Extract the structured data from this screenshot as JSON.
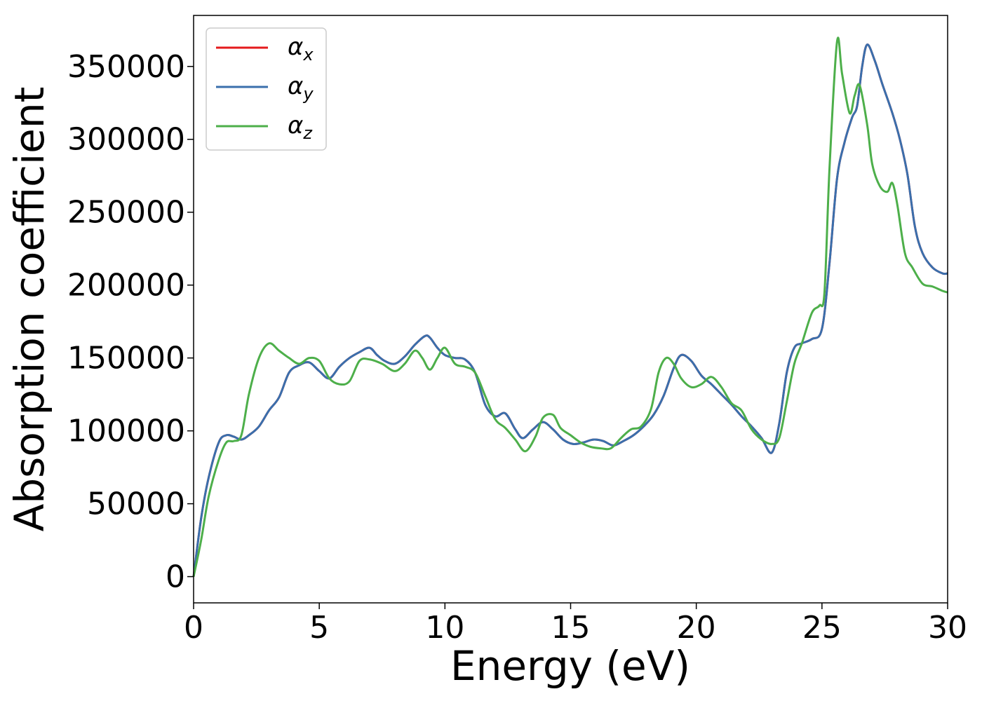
{
  "chart_data": {
    "type": "line",
    "xlabel": "Energy (eV)",
    "ylabel": "Absorption coefficient",
    "xlim": [
      0,
      30
    ],
    "ylim": [
      -18000,
      385000
    ],
    "xticks": [
      0,
      5,
      10,
      15,
      20,
      25,
      30
    ],
    "yticks": [
      0,
      50000,
      100000,
      150000,
      200000,
      250000,
      300000,
      350000
    ],
    "grid": false,
    "legend_position": "top-left",
    "series": [
      {
        "name": "α_x",
        "label_main": "α",
        "label_sub": "x",
        "color": "#e41a1c",
        "x": [
          0,
          0.3,
          0.6,
          1,
          1.3,
          1.6,
          1.9,
          2.2,
          2.6,
          3,
          3.4,
          3.8,
          4.2,
          4.6,
          5,
          5.4,
          5.8,
          6.2,
          6.6,
          7,
          7.3,
          7.6,
          8,
          8.4,
          8.8,
          9.2,
          9.4,
          9.7,
          10,
          10.4,
          10.8,
          11.2,
          11.6,
          12,
          12.4,
          12.8,
          13.1,
          13.5,
          13.9,
          14.3,
          14.7,
          15.1,
          15.5,
          15.9,
          16.3,
          16.7,
          17.1,
          17.5,
          17.9,
          18.3,
          18.7,
          19.1,
          19.4,
          19.8,
          20.2,
          20.6,
          21,
          21.4,
          21.8,
          22.2,
          22.6,
          23,
          23.3,
          23.6,
          23.9,
          24.2,
          24.6,
          25,
          25.3,
          25.6,
          25.9,
          26.2,
          26.4,
          26.6,
          26.8,
          27.1,
          27.4,
          27.8,
          28.1,
          28.4,
          28.7,
          29,
          29.4,
          29.8,
          30
        ],
        "y": [
          0,
          40000,
          68000,
          92000,
          97000,
          96000,
          94000,
          97000,
          103000,
          114000,
          123000,
          140000,
          145000,
          147000,
          141000,
          136000,
          144000,
          150000,
          154000,
          157000,
          152000,
          148000,
          146000,
          151000,
          159000,
          165000,
          164000,
          157000,
          152000,
          150000,
          149000,
          140000,
          118000,
          110000,
          112000,
          101000,
          95000,
          101000,
          106000,
          101000,
          94000,
          91000,
          92000,
          94000,
          93000,
          90000,
          93000,
          97000,
          103000,
          111000,
          124000,
          143000,
          152000,
          148000,
          138000,
          132000,
          125000,
          118000,
          110000,
          103000,
          95000,
          85000,
          105000,
          140000,
          157000,
          160000,
          163000,
          170000,
          215000,
          273000,
          298000,
          315000,
          323000,
          350000,
          365000,
          354000,
          338000,
          318000,
          300000,
          276000,
          240000,
          222000,
          212000,
          208000,
          208000
        ]
      },
      {
        "name": "α_y",
        "label_main": "α",
        "label_sub": "y",
        "color": "#3a6fac",
        "x": [
          0,
          0.3,
          0.6,
          1,
          1.3,
          1.6,
          1.9,
          2.2,
          2.6,
          3,
          3.4,
          3.8,
          4.2,
          4.6,
          5,
          5.4,
          5.8,
          6.2,
          6.6,
          7,
          7.3,
          7.6,
          8,
          8.4,
          8.8,
          9.2,
          9.4,
          9.7,
          10,
          10.4,
          10.8,
          11.2,
          11.6,
          12,
          12.4,
          12.8,
          13.1,
          13.5,
          13.9,
          14.3,
          14.7,
          15.1,
          15.5,
          15.9,
          16.3,
          16.7,
          17.1,
          17.5,
          17.9,
          18.3,
          18.7,
          19.1,
          19.4,
          19.8,
          20.2,
          20.6,
          21,
          21.4,
          21.8,
          22.2,
          22.6,
          23,
          23.3,
          23.6,
          23.9,
          24.2,
          24.6,
          25,
          25.3,
          25.6,
          25.9,
          26.2,
          26.4,
          26.6,
          26.8,
          27.1,
          27.4,
          27.8,
          28.1,
          28.4,
          28.7,
          29,
          29.4,
          29.8,
          30
        ],
        "y": [
          0,
          40000,
          68000,
          92000,
          97000,
          96000,
          94000,
          97000,
          103000,
          114000,
          123000,
          140000,
          145000,
          147000,
          141000,
          136000,
          144000,
          150000,
          154000,
          157000,
          152000,
          148000,
          146000,
          151000,
          159000,
          165000,
          164000,
          157000,
          152000,
          150000,
          149000,
          140000,
          118000,
          110000,
          112000,
          101000,
          95000,
          101000,
          106000,
          101000,
          94000,
          91000,
          92000,
          94000,
          93000,
          90000,
          93000,
          97000,
          103000,
          111000,
          124000,
          143000,
          152000,
          148000,
          138000,
          132000,
          125000,
          118000,
          110000,
          103000,
          95000,
          85000,
          105000,
          140000,
          157000,
          160000,
          163000,
          170000,
          215000,
          273000,
          298000,
          315000,
          323000,
          350000,
          365000,
          354000,
          338000,
          318000,
          300000,
          276000,
          240000,
          222000,
          212000,
          208000,
          208000
        ]
      },
      {
        "name": "α_z",
        "label_main": "α",
        "label_sub": "z",
        "color": "#4daf4a",
        "x": [
          0,
          0.3,
          0.6,
          1,
          1.3,
          1.6,
          1.9,
          2.2,
          2.6,
          3,
          3.4,
          3.8,
          4.2,
          4.6,
          5,
          5.4,
          5.8,
          6.2,
          6.6,
          7,
          7.5,
          8,
          8.4,
          8.8,
          9.1,
          9.4,
          9.7,
          10,
          10.4,
          10.8,
          11.2,
          11.6,
          12,
          12.4,
          12.8,
          13.2,
          13.6,
          13.9,
          14.3,
          14.6,
          15,
          15.4,
          15.8,
          16.2,
          16.6,
          17,
          17.4,
          17.8,
          18.2,
          18.5,
          18.8,
          19.1,
          19.4,
          19.8,
          20.2,
          20.6,
          21,
          21.4,
          21.8,
          22.2,
          22.6,
          23,
          23.3,
          23.6,
          23.9,
          24.2,
          24.6,
          24.9,
          25.1,
          25.3,
          25.6,
          25.8,
          26.1,
          26.3,
          26.5,
          26.8,
          27,
          27.3,
          27.6,
          27.8,
          28,
          28.3,
          28.6,
          29,
          29.4,
          29.8,
          30
        ],
        "y": [
          0,
          25000,
          55000,
          80000,
          92000,
          93000,
          97000,
          125000,
          150000,
          160000,
          155000,
          150000,
          146000,
          150000,
          148000,
          136000,
          132000,
          134000,
          148000,
          149000,
          146000,
          141000,
          146000,
          155000,
          150000,
          142000,
          150000,
          157000,
          146000,
          144000,
          140000,
          124000,
          108000,
          102000,
          94000,
          86000,
          96000,
          109000,
          111000,
          102000,
          97000,
          92000,
          89000,
          88000,
          88000,
          95000,
          101000,
          103000,
          115000,
          140000,
          150000,
          146000,
          136000,
          130000,
          132000,
          137000,
          130000,
          119000,
          114000,
          101000,
          94000,
          91000,
          95000,
          120000,
          146000,
          160000,
          181000,
          186000,
          195000,
          280000,
          367000,
          345000,
          318000,
          330000,
          337000,
          310000,
          283000,
          268000,
          264000,
          270000,
          255000,
          222000,
          212000,
          201000,
          199000,
          196000,
          195000
        ]
      }
    ]
  }
}
